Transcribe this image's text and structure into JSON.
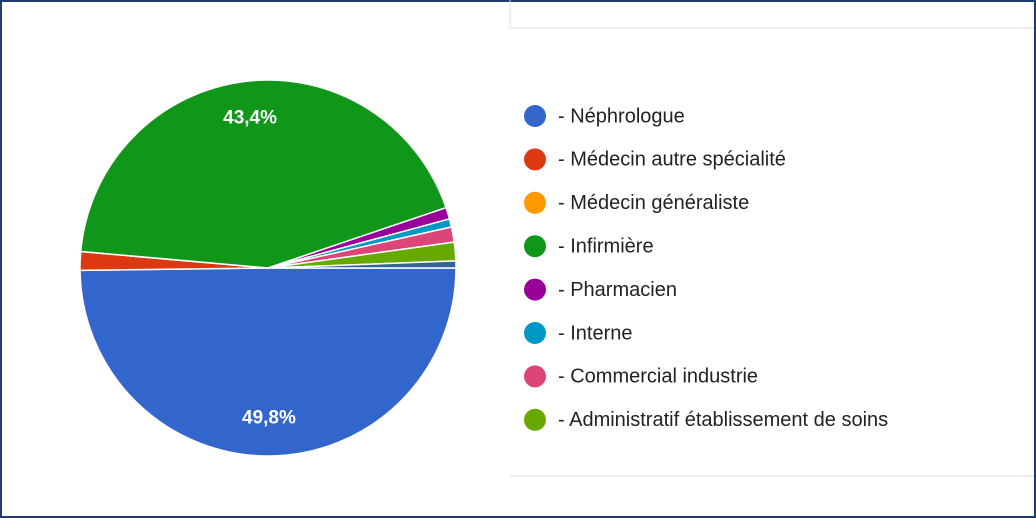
{
  "chart_data": {
    "type": "pie",
    "categories": [
      "- Néphrologue",
      "- Médecin autre spécialité",
      "- Médecin généraliste",
      "- Infirmière",
      "- Pharmacien",
      "- Interne",
      "- Commercial industrie",
      "- Administratif établissement de soins",
      null
    ],
    "values": [
      49.8,
      1.6,
      0,
      43.4,
      1.0,
      0.7,
      1.3,
      1.6,
      0.6
    ],
    "value_labels": [
      "49,8%",
      null,
      null,
      "43,4%",
      null,
      null,
      null,
      null,
      null
    ],
    "colors": [
      "#3366cc",
      "#dc3912",
      "#ff9900",
      "#109618",
      "#990099",
      "#0099c6",
      "#dd4477",
      "#66aa00",
      "#316395"
    ],
    "legend": "right"
  }
}
